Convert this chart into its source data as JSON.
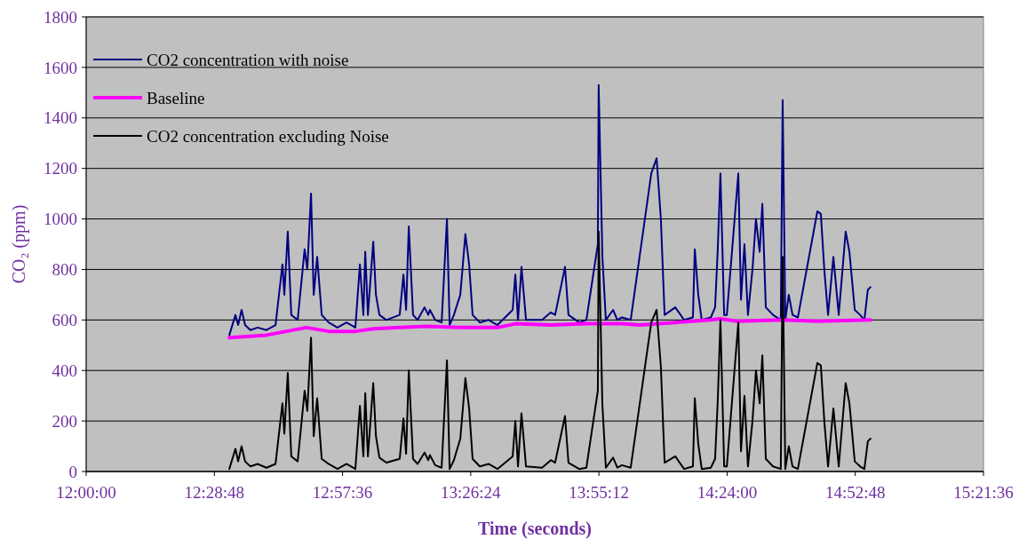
{
  "chart_data": {
    "type": "line",
    "xlabel": "Time (seconds)",
    "ylabel": "CO₂ (ppm)",
    "xlim": [
      12,
      15.36
    ],
    "ylim": [
      0,
      1800
    ],
    "xticks": [
      {
        "value": 12,
        "label": "12:00:00"
      },
      {
        "value": 12.48,
        "label": "12:28:48"
      },
      {
        "value": 12.96,
        "label": "12:57:36"
      },
      {
        "value": 13.44,
        "label": "13:26:24"
      },
      {
        "value": 13.92,
        "label": "13:55:12"
      },
      {
        "value": 14.4,
        "label": "14:24:00"
      },
      {
        "value": 14.88,
        "label": "14:52:48"
      },
      {
        "value": 15.36,
        "label": "15:21:36"
      }
    ],
    "yticks": [
      0,
      200,
      400,
      600,
      800,
      1000,
      1200,
      1400,
      1600,
      1800
    ],
    "grid": "y",
    "legend": "top left",
    "marker": "none",
    "line_style": "solid",
    "x": [
      12.536,
      12.559,
      12.569,
      12.582,
      12.595,
      12.615,
      12.642,
      12.675,
      12.709,
      12.735,
      12.742,
      12.755,
      12.768,
      12.792,
      12.818,
      12.828,
      12.842,
      12.852,
      12.865,
      12.882,
      12.908,
      12.941,
      12.975,
      13.008,
      13.025,
      13.038,
      13.045,
      13.055,
      13.075,
      13.085,
      13.098,
      13.124,
      13.174,
      13.188,
      13.198,
      13.208,
      13.224,
      13.241,
      13.267,
      13.281,
      13.287,
      13.307,
      13.331,
      13.351,
      13.361,
      13.377,
      13.401,
      13.42,
      13.434,
      13.447,
      13.474,
      13.507,
      13.54,
      13.597,
      13.607,
      13.617,
      13.63,
      13.647,
      13.707,
      13.74,
      13.756,
      13.793,
      13.806,
      13.846,
      13.873,
      13.916,
      13.919,
      13.933,
      13.946,
      13.973,
      13.989,
      14.006,
      14.039,
      14.116,
      14.136,
      14.152,
      14.166,
      14.206,
      14.239,
      14.272,
      14.279,
      14.292,
      14.305,
      14.339,
      14.355,
      14.365,
      14.375,
      14.389,
      14.399,
      14.442,
      14.452,
      14.465,
      14.478,
      14.495,
      14.508,
      14.522,
      14.532,
      14.545,
      14.572,
      14.601,
      14.608,
      14.618,
      14.631,
      14.645,
      14.665,
      14.738,
      14.751,
      14.764,
      14.778,
      14.798,
      14.818,
      14.844,
      14.858,
      14.878,
      14.898,
      14.914,
      14.927,
      14.937
    ],
    "series": [
      {
        "name": "CO2 concentration with noise",
        "color": "#000080",
        "values": [
          540,
          620,
          580,
          640,
          580,
          560,
          570,
          560,
          580,
          820,
          700,
          950,
          620,
          600,
          880,
          800,
          1100,
          700,
          850,
          620,
          590,
          570,
          590,
          570,
          820,
          620,
          870,
          620,
          910,
          700,
          620,
          600,
          620,
          780,
          640,
          970,
          620,
          600,
          650,
          620,
          640,
          600,
          590,
          1000,
          580,
          620,
          700,
          940,
          820,
          620,
          590,
          600,
          580,
          640,
          780,
          600,
          810,
          600,
          600,
          630,
          620,
          810,
          620,
          590,
          600,
          900,
          1530,
          850,
          600,
          640,
          600,
          610,
          600,
          1180,
          1240,
          1000,
          620,
          650,
          600,
          610,
          880,
          700,
          600,
          610,
          650,
          880,
          1180,
          620,
          620,
          1180,
          680,
          900,
          620,
          800,
          1000,
          870,
          1060,
          650,
          620,
          600,
          1470,
          600,
          700,
          620,
          610,
          1030,
          1020,
          800,
          620,
          850,
          620,
          950,
          870,
          640,
          620,
          600,
          720,
          730
        ]
      },
      {
        "name": "Baseline",
        "color": "#ff00ff",
        "x": [
          12.536,
          12.675,
          12.825,
          12.908,
          13.008,
          13.075,
          13.174,
          13.274,
          13.407,
          13.54,
          13.607,
          13.74,
          13.873,
          14.006,
          14.073,
          14.206,
          14.339,
          14.372,
          14.439,
          14.605,
          14.738,
          14.937
        ],
        "values": [
          530,
          540,
          570,
          555,
          555,
          565,
          570,
          575,
          570,
          570,
          585,
          580,
          585,
          585,
          580,
          590,
          600,
          605,
          595,
          600,
          595,
          600
        ]
      },
      {
        "name": "CO2 concentration excluding Noise",
        "color": "#000000",
        "values": [
          10,
          90,
          40,
          100,
          40,
          20,
          30,
          15,
          30,
          270,
          150,
          390,
          60,
          40,
          320,
          240,
          530,
          140,
          290,
          50,
          30,
          10,
          30,
          10,
          260,
          60,
          310,
          60,
          350,
          140,
          55,
          35,
          50,
          210,
          70,
          400,
          50,
          30,
          75,
          45,
          65,
          25,
          15,
          440,
          10,
          45,
          130,
          370,
          250,
          50,
          20,
          30,
          10,
          60,
          200,
          20,
          230,
          20,
          15,
          45,
          35,
          220,
          35,
          10,
          15,
          320,
          950,
          265,
          15,
          55,
          15,
          25,
          15,
          590,
          640,
          415,
          35,
          60,
          10,
          20,
          290,
          110,
          10,
          15,
          50,
          280,
          600,
          20,
          20,
          590,
          80,
          300,
          20,
          200,
          400,
          270,
          460,
          50,
          20,
          10,
          850,
          10,
          100,
          20,
          10,
          430,
          420,
          200,
          20,
          250,
          20,
          350,
          270,
          40,
          20,
          10,
          120,
          130
        ]
      }
    ]
  }
}
